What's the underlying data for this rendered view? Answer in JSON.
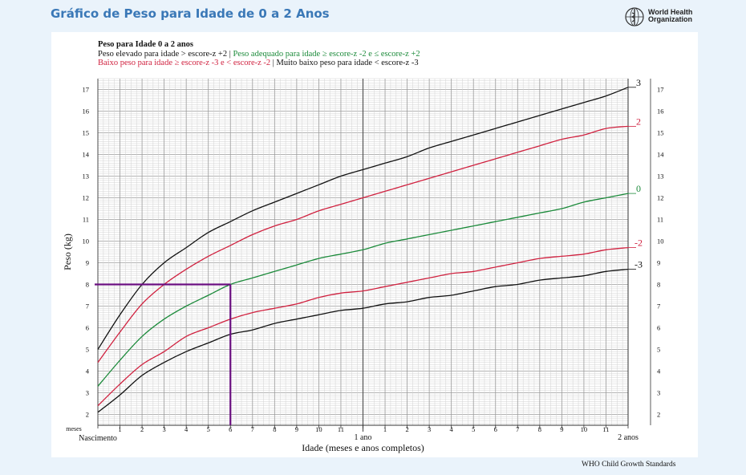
{
  "page_title": "Gráfico de Peso para Idade de 0 a 2 Anos",
  "logo": {
    "icon": "who-emblem-icon",
    "line1": "World Health",
    "line2": "Organization"
  },
  "header": {
    "title": "Peso para Idade 0 a 2 anos",
    "line2_part1": "Peso elevado para idade > escore-z +2 | ",
    "line2_part2": "Peso adequado para idade ≥ escore-z -2 e ≤ escore-z +2",
    "line3_part1": "Baixo peso para idade ≥ escore-z -3 e < escore-z -2",
    "line3_part2": " | Muito baixo peso para idade < escore-z -3"
  },
  "footer": "WHO Child Growth Standards",
  "colors": {
    "dark": "#111111",
    "red": "#d0213f",
    "green": "#1b8a3a",
    "marker": "#6a0f80",
    "title": "#3a78b7"
  },
  "chart_data": {
    "type": "line",
    "xlabel": "Idade (meses e anos completos)",
    "ylabel": "Peso (kg)",
    "x_unit_label": "meses",
    "x_ticks_first_year": [
      "1",
      "2",
      "3",
      "4",
      "5",
      "6",
      "7",
      "8",
      "9",
      "10",
      "11"
    ],
    "x_ticks_second_year": [
      "1",
      "2",
      "3",
      "4",
      "5",
      "6",
      "7",
      "8",
      "9",
      "10",
      "11"
    ],
    "x_landmarks": [
      {
        "month": 0,
        "label": "Nascimento"
      },
      {
        "month": 12,
        "label": "1 ano"
      },
      {
        "month": 24,
        "label": "2 anos"
      }
    ],
    "xlim": [
      0,
      24
    ],
    "ylim": [
      1.5,
      17.5
    ],
    "y_ticks": [
      "2",
      "3",
      "4",
      "5",
      "6",
      "7",
      "8",
      "9",
      "10",
      "11",
      "12",
      "13",
      "14",
      "15",
      "16",
      "17"
    ],
    "x": [
      0,
      1,
      2,
      3,
      4,
      5,
      6,
      7,
      8,
      9,
      10,
      11,
      12,
      13,
      14,
      15,
      16,
      17,
      18,
      19,
      20,
      21,
      22,
      23,
      24
    ],
    "series": [
      {
        "name": "3",
        "color": "#111111",
        "values": [
          5.0,
          6.6,
          8.0,
          9.0,
          9.7,
          10.4,
          10.9,
          11.4,
          11.8,
          12.2,
          12.6,
          13.0,
          13.3,
          13.6,
          13.9,
          14.3,
          14.6,
          14.9,
          15.2,
          15.5,
          15.8,
          16.1,
          16.4,
          16.7,
          17.1
        ]
      },
      {
        "name": "2",
        "color": "#d0213f",
        "values": [
          4.4,
          5.8,
          7.1,
          8.0,
          8.7,
          9.3,
          9.8,
          10.3,
          10.7,
          11.0,
          11.4,
          11.7,
          12.0,
          12.3,
          12.6,
          12.9,
          13.2,
          13.5,
          13.8,
          14.1,
          14.4,
          14.7,
          14.9,
          15.2,
          15.3
        ]
      },
      {
        "name": "0",
        "color": "#1b8a3a",
        "values": [
          3.3,
          4.5,
          5.6,
          6.4,
          7.0,
          7.5,
          8.0,
          8.3,
          8.6,
          8.9,
          9.2,
          9.4,
          9.6,
          9.9,
          10.1,
          10.3,
          10.5,
          10.7,
          10.9,
          11.1,
          11.3,
          11.5,
          11.8,
          12.0,
          12.2
        ]
      },
      {
        "name": "-2",
        "color": "#d0213f",
        "values": [
          2.4,
          3.4,
          4.3,
          4.9,
          5.6,
          6.0,
          6.4,
          6.7,
          6.9,
          7.1,
          7.4,
          7.6,
          7.7,
          7.9,
          8.1,
          8.3,
          8.5,
          8.6,
          8.8,
          9.0,
          9.2,
          9.3,
          9.4,
          9.6,
          9.7
        ]
      },
      {
        "name": "-3",
        "color": "#111111",
        "values": [
          2.1,
          2.9,
          3.8,
          4.4,
          4.9,
          5.3,
          5.7,
          5.9,
          6.2,
          6.4,
          6.6,
          6.8,
          6.9,
          7.1,
          7.2,
          7.4,
          7.5,
          7.7,
          7.9,
          8.0,
          8.2,
          8.3,
          8.4,
          8.6,
          8.7
        ]
      }
    ],
    "marker": {
      "x": 6,
      "y": 8
    }
  }
}
